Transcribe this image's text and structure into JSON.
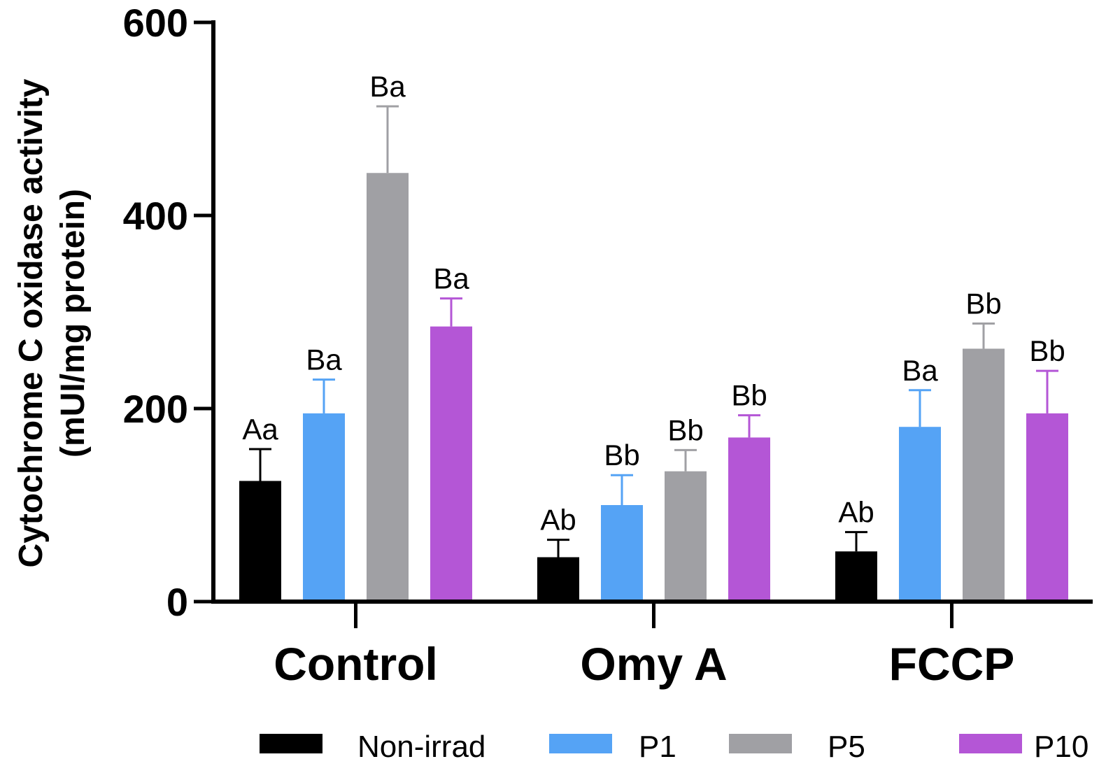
{
  "chart_data": {
    "type": "bar",
    "title": "",
    "xlabel": "",
    "ylabel_line1": "Cytochrome C oxidase activity",
    "ylabel_line2": "(mUI/mg protein)",
    "ylim": [
      0,
      600
    ],
    "yticks": [
      0,
      200,
      400,
      600
    ],
    "ytick_labels": [
      "0",
      "200",
      "400",
      "600"
    ],
    "categories": [
      "Control",
      "Omy A",
      "FCCP"
    ],
    "legend_position": "bottom",
    "series": [
      {
        "name": "Non-irrad",
        "color": "#000000",
        "values": [
          125,
          46,
          52
        ],
        "errors": [
          33,
          18,
          20
        ],
        "labels": [
          "Aa",
          "Ab",
          "Ab"
        ]
      },
      {
        "name": "P1",
        "color": "#55a3f5",
        "values": [
          195,
          100,
          181
        ],
        "errors": [
          35,
          31,
          38
        ],
        "labels": [
          "Ba",
          "Bb",
          "Ba"
        ]
      },
      {
        "name": "P5",
        "color": "#a0a0a4",
        "values": [
          444,
          135,
          262
        ],
        "errors": [
          69,
          22,
          26
        ],
        "labels": [
          "Ba",
          "Bb",
          "Bb"
        ]
      },
      {
        "name": "P10",
        "color": "#b456d6",
        "values": [
          285,
          170,
          195
        ],
        "errors": [
          29,
          23,
          44
        ],
        "labels": [
          "Ba",
          "Bb",
          "Bb"
        ]
      }
    ]
  }
}
